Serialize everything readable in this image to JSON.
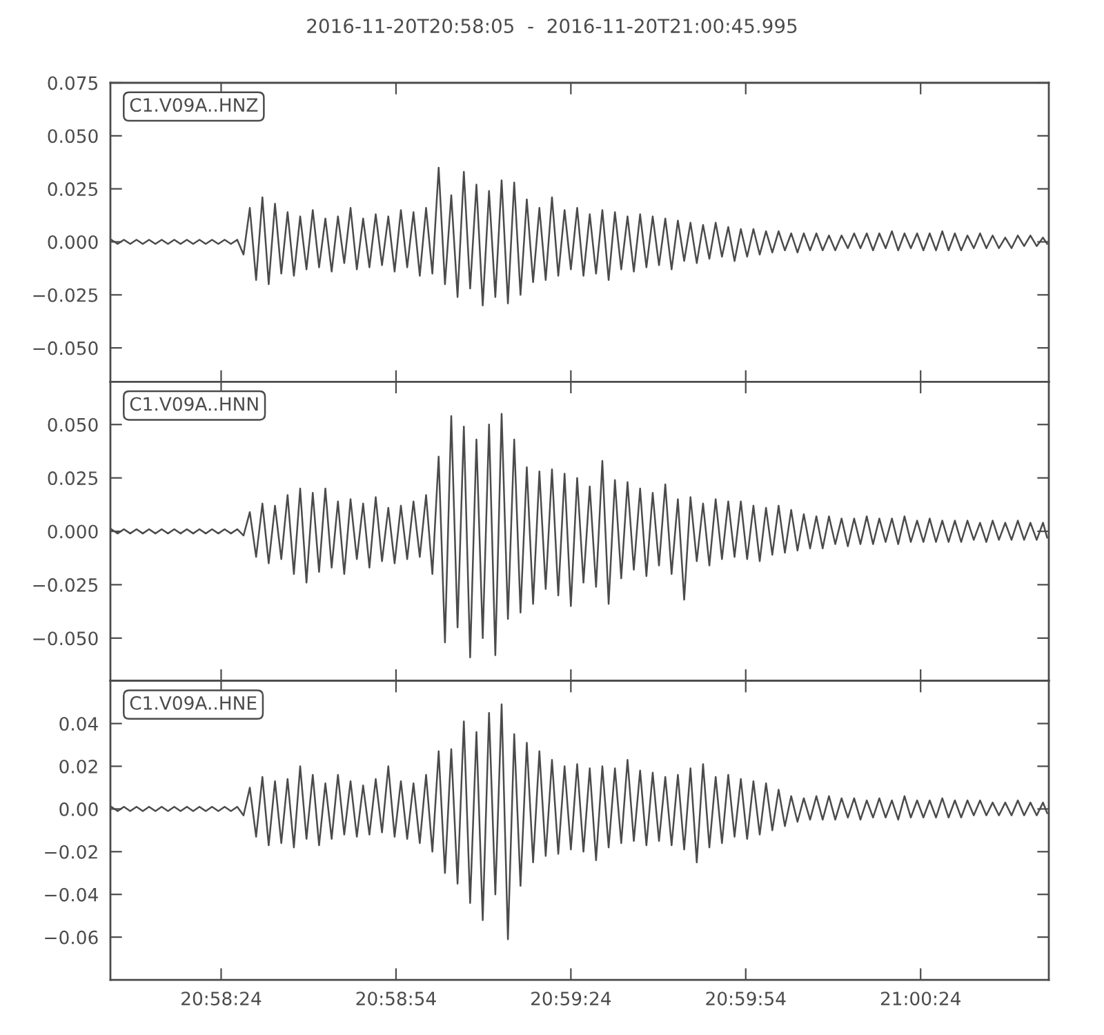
{
  "chart_data": [
    {
      "type": "line",
      "title": "2016-11-20T20:58:05  -  2016-11-20T21:00:45.995",
      "annotations": [
        "C1.V09A..HNZ"
      ],
      "tick_labels": "y",
      "xlim": [
        20.968056,
        21.012776
      ],
      "xticks": [
        {
          "value": 20.973333,
          "label": null
        },
        {
          "value": 20.981667,
          "label": null
        },
        {
          "value": 20.99,
          "label": null
        },
        {
          "value": 20.998333,
          "label": null
        },
        {
          "value": 21.006667,
          "label": null
        }
      ],
      "ylim": [
        -0.066,
        0.075
      ],
      "yticks": [
        {
          "value": -0.05,
          "label": "−0.050"
        },
        {
          "value": -0.025,
          "label": "−0.025"
        },
        {
          "value": 0,
          "label": "0.000"
        },
        {
          "value": 0.025,
          "label": "0.025"
        },
        {
          "value": 0.05,
          "label": "0.050"
        },
        {
          "value": 0.075,
          "label": "0.075"
        }
      ],
      "x": [
        20.9681,
        20.9684,
        20.9687,
        20.969,
        20.9693,
        20.9696,
        20.9699,
        20.9702,
        20.9705,
        20.9708,
        20.9711,
        20.9714,
        20.9717,
        20.972,
        20.9723,
        20.9726,
        20.9729,
        20.9732,
        20.9735,
        20.9738,
        20.9741,
        20.9744,
        20.9747,
        20.975,
        20.9753,
        20.9756,
        20.9759,
        20.9762,
        20.9765,
        20.9768,
        20.9771,
        20.9774,
        20.9777,
        20.978,
        20.9783,
        20.9786,
        20.9789,
        20.9792,
        20.9795,
        20.9798,
        20.9801,
        20.9804,
        20.9807,
        20.981,
        20.9813,
        20.9816,
        20.9819,
        20.9822,
        20.9825,
        20.9828,
        20.9831,
        20.9834,
        20.9837,
        20.984,
        20.9843,
        20.9846,
        20.9849,
        20.9852,
        20.9855,
        20.9858,
        20.9861,
        20.9864,
        20.9867,
        20.987,
        20.9873,
        20.9876,
        20.9879,
        20.9882,
        20.9885,
        20.9888,
        20.9891,
        20.9894,
        20.9897,
        20.99,
        20.9903,
        20.9906,
        20.9909,
        20.9912,
        20.9915,
        20.9918,
        20.9921,
        20.9924,
        20.9927,
        20.993,
        20.9933,
        20.9936,
        20.9939,
        20.9942,
        20.9945,
        20.9948,
        20.9951,
        20.9954,
        20.9957,
        20.996,
        20.9963,
        20.9966,
        20.9969,
        20.9972,
        20.9975,
        20.9978,
        20.9981,
        20.9984,
        20.9987,
        20.999,
        20.9993,
        20.9996,
        20.9999,
        21.0002,
        21.0005,
        21.0008,
        21.0011,
        21.0014,
        21.0017,
        21.002,
        21.0023,
        21.0026,
        21.0029,
        21.0032,
        21.0035,
        21.0038,
        21.0041,
        21.0044,
        21.0047,
        21.005,
        21.0053,
        21.0056,
        21.0059,
        21.0062,
        21.0065,
        21.0068,
        21.0071,
        21.0074,
        21.0077,
        21.008,
        21.0083,
        21.0086,
        21.0089,
        21.0092,
        21.0095,
        21.0098,
        21.0101,
        21.0104,
        21.0107,
        21.011,
        21.0113,
        21.0116,
        21.0119,
        21.0122,
        21.0125,
        21.0127
      ],
      "series": [
        {
          "color": "#4b4b4b",
          "values": [
            0.001,
            -0.001,
            0.001,
            -0.001,
            0.001,
            -0.001,
            0.001,
            -0.001,
            0.001,
            -0.001,
            0.001,
            -0.001,
            0.001,
            -0.001,
            0.001,
            -0.001,
            0.001,
            -0.001,
            0.001,
            -0.001,
            0.001,
            -0.006,
            0.016,
            -0.018,
            0.021,
            -0.02,
            0.018,
            -0.015,
            0.014,
            -0.016,
            0.012,
            -0.013,
            0.015,
            -0.012,
            0.011,
            -0.014,
            0.012,
            -0.01,
            0.016,
            -0.013,
            0.011,
            -0.012,
            0.013,
            -0.011,
            0.012,
            -0.014,
            0.015,
            -0.012,
            0.014,
            -0.016,
            0.016,
            -0.015,
            0.035,
            -0.02,
            0.022,
            -0.026,
            0.033,
            -0.022,
            0.027,
            -0.03,
            0.024,
            -0.026,
            0.029,
            -0.029,
            0.028,
            -0.025,
            0.02,
            -0.019,
            0.016,
            -0.018,
            0.021,
            -0.016,
            0.015,
            -0.013,
            0.016,
            -0.016,
            0.013,
            -0.015,
            0.015,
            -0.018,
            0.014,
            -0.013,
            0.012,
            -0.014,
            0.013,
            -0.012,
            0.012,
            -0.011,
            0.011,
            -0.013,
            0.01,
            -0.009,
            0.009,
            -0.01,
            0.008,
            -0.008,
            0.009,
            -0.007,
            0.007,
            -0.009,
            0.006,
            -0.007,
            0.006,
            -0.006,
            0.005,
            -0.005,
            0.005,
            -0.004,
            0.004,
            -0.005,
            0.004,
            -0.004,
            0.004,
            -0.004,
            0.003,
            -0.004,
            0.003,
            -0.003,
            0.004,
            -0.003,
            0.004,
            -0.004,
            0.004,
            -0.003,
            0.005,
            -0.004,
            0.004,
            -0.003,
            0.004,
            -0.004,
            0.004,
            -0.004,
            0.005,
            -0.004,
            0.004,
            -0.004,
            0.003,
            -0.003,
            0.004,
            -0.003,
            0.003,
            -0.003,
            0.002,
            -0.003,
            0.003,
            -0.002,
            0.003,
            -0.002,
            0.002,
            -0.001
          ]
        }
      ]
    },
    {
      "type": "line",
      "annotations": [
        "C1.V09A..HNN"
      ],
      "tick_labels": "y",
      "xlim": [
        20.968056,
        21.012776
      ],
      "xticks": [
        {
          "value": 20.973333,
          "label": null
        },
        {
          "value": 20.981667,
          "label": null
        },
        {
          "value": 20.99,
          "label": null
        },
        {
          "value": 20.998333,
          "label": null
        },
        {
          "value": 21.006667,
          "label": null
        }
      ],
      "ylim": [
        -0.07,
        0.07
      ],
      "yticks": [
        {
          "value": -0.05,
          "label": "−0.050"
        },
        {
          "value": -0.025,
          "label": "−0.025"
        },
        {
          "value": 0,
          "label": "0.000"
        },
        {
          "value": 0.025,
          "label": "0.025"
        },
        {
          "value": 0.05,
          "label": "0.050"
        }
      ],
      "x": [
        20.9681,
        20.9684,
        20.9687,
        20.969,
        20.9693,
        20.9696,
        20.9699,
        20.9702,
        20.9705,
        20.9708,
        20.9711,
        20.9714,
        20.9717,
        20.972,
        20.9723,
        20.9726,
        20.9729,
        20.9732,
        20.9735,
        20.9738,
        20.9741,
        20.9744,
        20.9747,
        20.975,
        20.9753,
        20.9756,
        20.9759,
        20.9762,
        20.9765,
        20.9768,
        20.9771,
        20.9774,
        20.9777,
        20.978,
        20.9783,
        20.9786,
        20.9789,
        20.9792,
        20.9795,
        20.9798,
        20.9801,
        20.9804,
        20.9807,
        20.981,
        20.9813,
        20.9816,
        20.9819,
        20.9822,
        20.9825,
        20.9828,
        20.9831,
        20.9834,
        20.9837,
        20.984,
        20.9843,
        20.9846,
        20.9849,
        20.9852,
        20.9855,
        20.9858,
        20.9861,
        20.9864,
        20.9867,
        20.987,
        20.9873,
        20.9876,
        20.9879,
        20.9882,
        20.9885,
        20.9888,
        20.9891,
        20.9894,
        20.9897,
        20.99,
        20.9903,
        20.9906,
        20.9909,
        20.9912,
        20.9915,
        20.9918,
        20.9921,
        20.9924,
        20.9927,
        20.993,
        20.9933,
        20.9936,
        20.9939,
        20.9942,
        20.9945,
        20.9948,
        20.9951,
        20.9954,
        20.9957,
        20.996,
        20.9963,
        20.9966,
        20.9969,
        20.9972,
        20.9975,
        20.9978,
        20.9981,
        20.9984,
        20.9987,
        20.999,
        20.9993,
        20.9996,
        20.9999,
        21.0002,
        21.0005,
        21.0008,
        21.0011,
        21.0014,
        21.0017,
        21.002,
        21.0023,
        21.0026,
        21.0029,
        21.0032,
        21.0035,
        21.0038,
        21.0041,
        21.0044,
        21.0047,
        21.005,
        21.0053,
        21.0056,
        21.0059,
        21.0062,
        21.0065,
        21.0068,
        21.0071,
        21.0074,
        21.0077,
        21.008,
        21.0083,
        21.0086,
        21.0089,
        21.0092,
        21.0095,
        21.0098,
        21.0101,
        21.0104,
        21.0107,
        21.011,
        21.0113,
        21.0116,
        21.0119,
        21.0122,
        21.0125,
        21.0127
      ],
      "series": [
        {
          "color": "#4b4b4b",
          "values": [
            0.001,
            -0.001,
            0.001,
            -0.001,
            0.001,
            -0.001,
            0.001,
            -0.001,
            0.001,
            -0.001,
            0.001,
            -0.001,
            0.001,
            -0.001,
            0.001,
            -0.001,
            0.001,
            -0.001,
            0.001,
            -0.001,
            0.001,
            -0.002,
            0.009,
            -0.012,
            0.013,
            -0.015,
            0.012,
            -0.013,
            0.017,
            -0.02,
            0.02,
            -0.024,
            0.018,
            -0.019,
            0.02,
            -0.017,
            0.014,
            -0.02,
            0.015,
            -0.013,
            0.013,
            -0.017,
            0.016,
            -0.014,
            0.011,
            -0.015,
            0.012,
            -0.013,
            0.014,
            -0.012,
            0.017,
            -0.02,
            0.035,
            -0.052,
            0.054,
            -0.045,
            0.049,
            -0.059,
            0.043,
            -0.05,
            0.05,
            -0.058,
            0.055,
            -0.041,
            0.043,
            -0.038,
            0.03,
            -0.034,
            0.028,
            -0.027,
            0.029,
            -0.03,
            0.027,
            -0.035,
            0.025,
            -0.024,
            0.021,
            -0.026,
            0.033,
            -0.034,
            0.024,
            -0.022,
            0.023,
            -0.018,
            0.02,
            -0.021,
            0.018,
            -0.016,
            0.022,
            -0.02,
            0.015,
            -0.032,
            0.016,
            -0.014,
            0.013,
            -0.016,
            0.015,
            -0.013,
            0.014,
            -0.012,
            0.014,
            -0.013,
            0.012,
            -0.014,
            0.011,
            -0.011,
            0.012,
            -0.01,
            0.01,
            -0.009,
            0.008,
            -0.008,
            0.007,
            -0.008,
            0.007,
            -0.006,
            0.006,
            -0.007,
            0.006,
            -0.006,
            0.007,
            -0.006,
            0.006,
            -0.005,
            0.006,
            -0.006,
            0.007,
            -0.005,
            0.005,
            -0.005,
            0.006,
            -0.005,
            0.005,
            -0.005,
            0.005,
            -0.005,
            0.005,
            -0.004,
            0.004,
            -0.005,
            0.005,
            -0.004,
            0.004,
            -0.004,
            0.005,
            -0.004,
            0.004,
            -0.004,
            0.004,
            -0.003
          ]
        }
      ]
    },
    {
      "type": "line",
      "annotations": [
        "C1.V09A..HNE"
      ],
      "xlim": [
        20.968056,
        21.012776
      ],
      "xticks": [
        {
          "value": 20.973333,
          "label": "20:58:24"
        },
        {
          "value": 20.981667,
          "label": "20:58:54"
        },
        {
          "value": 20.99,
          "label": "20:59:24"
        },
        {
          "value": 20.998333,
          "label": "20:59:54"
        },
        {
          "value": 21.006667,
          "label": "21:00:24"
        }
      ],
      "ylim": [
        -0.08,
        0.06
      ],
      "yticks": [
        {
          "value": -0.06,
          "label": "−0.06"
        },
        {
          "value": -0.04,
          "label": "−0.04"
        },
        {
          "value": -0.02,
          "label": "−0.02"
        },
        {
          "value": 0,
          "label": "0.00"
        },
        {
          "value": 0.02,
          "label": "0.02"
        },
        {
          "value": 0.04,
          "label": "0.04"
        }
      ],
      "x": [
        20.9681,
        20.9684,
        20.9687,
        20.969,
        20.9693,
        20.9696,
        20.9699,
        20.9702,
        20.9705,
        20.9708,
        20.9711,
        20.9714,
        20.9717,
        20.972,
        20.9723,
        20.9726,
        20.9729,
        20.9732,
        20.9735,
        20.9738,
        20.9741,
        20.9744,
        20.9747,
        20.975,
        20.9753,
        20.9756,
        20.9759,
        20.9762,
        20.9765,
        20.9768,
        20.9771,
        20.9774,
        20.9777,
        20.978,
        20.9783,
        20.9786,
        20.9789,
        20.9792,
        20.9795,
        20.9798,
        20.9801,
        20.9804,
        20.9807,
        20.981,
        20.9813,
        20.9816,
        20.9819,
        20.9822,
        20.9825,
        20.9828,
        20.9831,
        20.9834,
        20.9837,
        20.984,
        20.9843,
        20.9846,
        20.9849,
        20.9852,
        20.9855,
        20.9858,
        20.9861,
        20.9864,
        20.9867,
        20.987,
        20.9873,
        20.9876,
        20.9879,
        20.9882,
        20.9885,
        20.9888,
        20.9891,
        20.9894,
        20.9897,
        20.99,
        20.9903,
        20.9906,
        20.9909,
        20.9912,
        20.9915,
        20.9918,
        20.9921,
        20.9924,
        20.9927,
        20.993,
        20.9933,
        20.9936,
        20.9939,
        20.9942,
        20.9945,
        20.9948,
        20.9951,
        20.9954,
        20.9957,
        20.996,
        20.9963,
        20.9966,
        20.9969,
        20.9972,
        20.9975,
        20.9978,
        20.9981,
        20.9984,
        20.9987,
        20.999,
        20.9993,
        20.9996,
        20.9999,
        21.0002,
        21.0005,
        21.0008,
        21.0011,
        21.0014,
        21.0017,
        21.002,
        21.0023,
        21.0026,
        21.0029,
        21.0032,
        21.0035,
        21.0038,
        21.0041,
        21.0044,
        21.0047,
        21.005,
        21.0053,
        21.0056,
        21.0059,
        21.0062,
        21.0065,
        21.0068,
        21.0071,
        21.0074,
        21.0077,
        21.008,
        21.0083,
        21.0086,
        21.0089,
        21.0092,
        21.0095,
        21.0098,
        21.0101,
        21.0104,
        21.0107,
        21.011,
        21.0113,
        21.0116,
        21.0119,
        21.0122,
        21.0125,
        21.0127
      ],
      "series": [
        {
          "color": "#4b4b4b",
          "values": [
            0.001,
            -0.001,
            0.001,
            -0.001,
            0.001,
            -0.001,
            0.001,
            -0.001,
            0.001,
            -0.001,
            0.001,
            -0.001,
            0.001,
            -0.001,
            0.001,
            -0.001,
            0.001,
            -0.001,
            0.001,
            -0.001,
            0.001,
            -0.003,
            0.01,
            -0.013,
            0.015,
            -0.017,
            0.013,
            -0.016,
            0.014,
            -0.018,
            0.02,
            -0.014,
            0.016,
            -0.017,
            0.012,
            -0.014,
            0.016,
            -0.012,
            0.013,
            -0.013,
            0.011,
            -0.012,
            0.014,
            -0.011,
            0.02,
            -0.013,
            0.013,
            -0.014,
            0.012,
            -0.016,
            0.016,
            -0.02,
            0.027,
            -0.03,
            0.028,
            -0.035,
            0.041,
            -0.044,
            0.036,
            -0.052,
            0.045,
            -0.04,
            0.049,
            -0.061,
            0.035,
            -0.036,
            0.031,
            -0.025,
            0.027,
            -0.022,
            0.023,
            -0.021,
            0.02,
            -0.019,
            0.021,
            -0.02,
            0.019,
            -0.024,
            0.02,
            -0.018,
            0.019,
            -0.016,
            0.023,
            -0.015,
            0.018,
            -0.017,
            0.017,
            -0.015,
            0.015,
            -0.017,
            0.016,
            -0.019,
            0.019,
            -0.025,
            0.021,
            -0.018,
            0.015,
            -0.016,
            0.016,
            -0.013,
            0.014,
            -0.014,
            0.013,
            -0.012,
            0.012,
            -0.01,
            0.009,
            -0.008,
            0.006,
            -0.006,
            0.005,
            -0.005,
            0.006,
            -0.005,
            0.006,
            -0.005,
            0.005,
            -0.004,
            0.005,
            -0.005,
            0.004,
            -0.004,
            0.005,
            -0.004,
            0.004,
            -0.005,
            0.006,
            -0.004,
            0.004,
            -0.004,
            0.004,
            -0.004,
            0.005,
            -0.004,
            0.004,
            -0.004,
            0.004,
            -0.003,
            0.004,
            -0.003,
            0.003,
            -0.003,
            0.003,
            -0.003,
            0.004,
            -0.003,
            0.003,
            -0.003,
            0.003,
            -0.002
          ]
        }
      ]
    }
  ]
}
